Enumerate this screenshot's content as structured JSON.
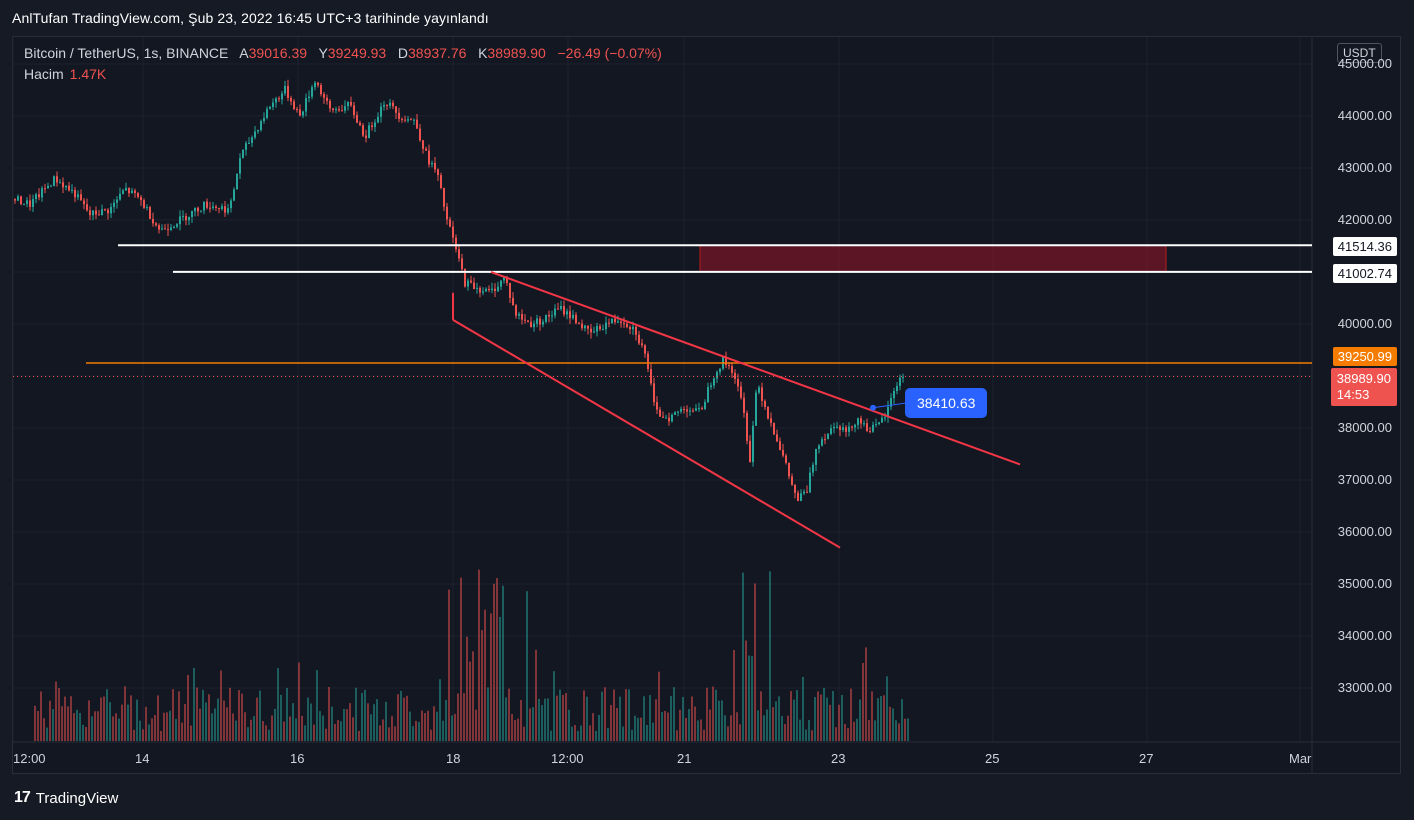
{
  "header": {
    "title": "AnlTufan TradingView.com, Şub 23, 2022 16:45 UTC+3 tarihinde yayınlandı"
  },
  "legend": {
    "symbol": "Bitcoin / TetherUS, 1s, BINANCE",
    "open_label": "A",
    "open": "39016.39",
    "high_label": "Y",
    "high": "39249.93",
    "low_label": "D",
    "low": "38937.76",
    "close_label": "K",
    "close": "38989.90",
    "change": "−26.49 (−0.07%)",
    "volume_label": "Hacim",
    "volume": "1.47K"
  },
  "axis": {
    "currency": "USDT",
    "price_ticks": [
      "45000.00",
      "44000.00",
      "43000.00",
      "42000.00",
      "40000.00",
      "38000.00",
      "37000.00",
      "36000.00",
      "35000.00",
      "34000.00",
      "33000.00"
    ],
    "time_ticks": [
      "12:00",
      "14",
      "16",
      "18",
      "12:00",
      "21",
      "23",
      "25",
      "27",
      "Mar"
    ]
  },
  "levels": {
    "resistance_top": "41514.36",
    "resistance_bottom": "41002.74",
    "orange_line": "39250.99",
    "last_price": "38989.90",
    "countdown": "14:53",
    "callout": "38410.63"
  },
  "footer": {
    "logo": "17",
    "brand": "TradingView"
  },
  "chart_data": {
    "type": "candlestick",
    "x": [
      "12:00",
      "14",
      "16",
      "18",
      "12:00",
      "21",
      "23",
      "25",
      "27",
      "Mar"
    ],
    "ylim": [
      32000,
      45500
    ],
    "horizontal_lines": [
      41514.36,
      41002.74,
      39250.99
    ],
    "current_price": 38989.9,
    "zone": {
      "from": 41002.74,
      "to": 41514.36
    },
    "anchors": [
      [
        0,
        42400
      ],
      [
        15,
        42300
      ],
      [
        40,
        42800
      ],
      [
        60,
        42500
      ],
      [
        75,
        42100
      ],
      [
        95,
        42200
      ],
      [
        110,
        42600
      ],
      [
        125,
        42400
      ],
      [
        145,
        41800
      ],
      [
        165,
        42000
      ],
      [
        190,
        42300
      ],
      [
        215,
        42200
      ],
      [
        225,
        43200
      ],
      [
        240,
        43700
      ],
      [
        255,
        44200
      ],
      [
        270,
        44500
      ],
      [
        285,
        44000
      ],
      [
        300,
        44700
      ],
      [
        315,
        44100
      ],
      [
        335,
        44200
      ],
      [
        350,
        43600
      ],
      [
        370,
        44300
      ],
      [
        385,
        44000
      ],
      [
        400,
        43900
      ],
      [
        412,
        43200
      ],
      [
        422,
        42900
      ],
      [
        432,
        42000
      ],
      [
        440,
        41500
      ],
      [
        450,
        40800
      ],
      [
        462,
        40700
      ],
      [
        475,
        40600
      ],
      [
        490,
        40900
      ],
      [
        500,
        40200
      ],
      [
        515,
        40000
      ],
      [
        530,
        40100
      ],
      [
        545,
        40300
      ],
      [
        560,
        40100
      ],
      [
        575,
        39800
      ],
      [
        590,
        40000
      ],
      [
        605,
        40100
      ],
      [
        620,
        39900
      ],
      [
        632,
        39300
      ],
      [
        640,
        38300
      ],
      [
        655,
        38200
      ],
      [
        670,
        38400
      ],
      [
        685,
        38300
      ],
      [
        698,
        39000
      ],
      [
        708,
        39300
      ],
      [
        718,
        39100
      ],
      [
        728,
        38400
      ],
      [
        735,
        37400
      ],
      [
        742,
        38900
      ],
      [
        752,
        38300
      ],
      [
        762,
        37800
      ],
      [
        772,
        37200
      ],
      [
        782,
        36600
      ],
      [
        792,
        36800
      ],
      [
        802,
        37700
      ],
      [
        812,
        37900
      ],
      [
        822,
        38100
      ],
      [
        832,
        37900
      ],
      [
        842,
        38200
      ],
      [
        852,
        38000
      ],
      [
        862,
        38000
      ],
      [
        872,
        38300
      ],
      [
        880,
        38800
      ],
      [
        888,
        39000
      ]
    ],
    "annotations": [
      {
        "type": "trendline",
        "from": [
          491,
          41000
        ],
        "to": [
          1020,
          37300
        ]
      },
      {
        "type": "trendline",
        "from": [
          453,
          40080
        ],
        "to": [
          840,
          35700
        ]
      }
    ]
  }
}
